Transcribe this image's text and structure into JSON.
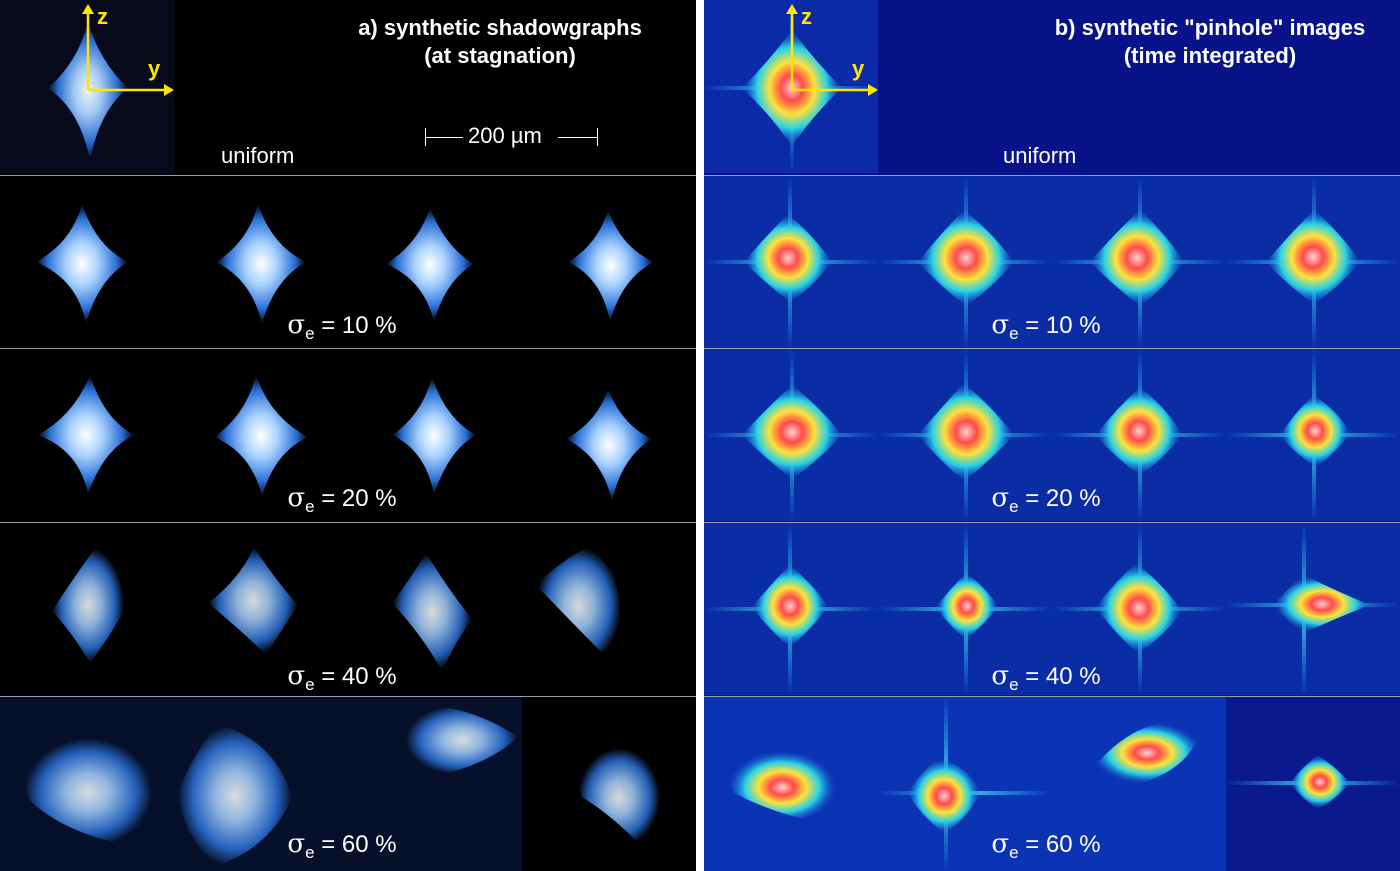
{
  "panel_a": {
    "title_line1": "a) synthetic shadowgraphs",
    "title_line2": "(at stagnation)",
    "uniform_label": "uniform",
    "scale_label": "200 µm",
    "rows": [
      {
        "sigma": "σ",
        "sub": "e",
        "value": " = 10 %"
      },
      {
        "sigma": "σ",
        "sub": "e",
        "value": " = 20 %"
      },
      {
        "sigma": "σ",
        "sub": "e",
        "value": " = 40 %"
      },
      {
        "sigma": "σ",
        "sub": "e",
        "value": " = 60 %"
      }
    ]
  },
  "panel_b": {
    "title_line1": "b) synthetic \"pinhole\" images",
    "title_line2": "(time integrated)",
    "uniform_label": "uniform",
    "rows": [
      {
        "sigma": "σ",
        "sub": "e",
        "value": " = 10 %"
      },
      {
        "sigma": "σ",
        "sub": "e",
        "value": " = 20 %"
      },
      {
        "sigma": "σ",
        "sub": "e",
        "value": " = 40 %"
      },
      {
        "sigma": "σ",
        "sub": "e",
        "value": " = 60 %"
      }
    ]
  },
  "axes": {
    "z_label": "z",
    "y_label": "y",
    "color": "#ffe600"
  },
  "colors": {
    "shadow_bg": "#000000",
    "pinhole_bg": "#08138a",
    "shadow_glow": "#5aa8ff",
    "hot_core": "#ff5a5a"
  }
}
